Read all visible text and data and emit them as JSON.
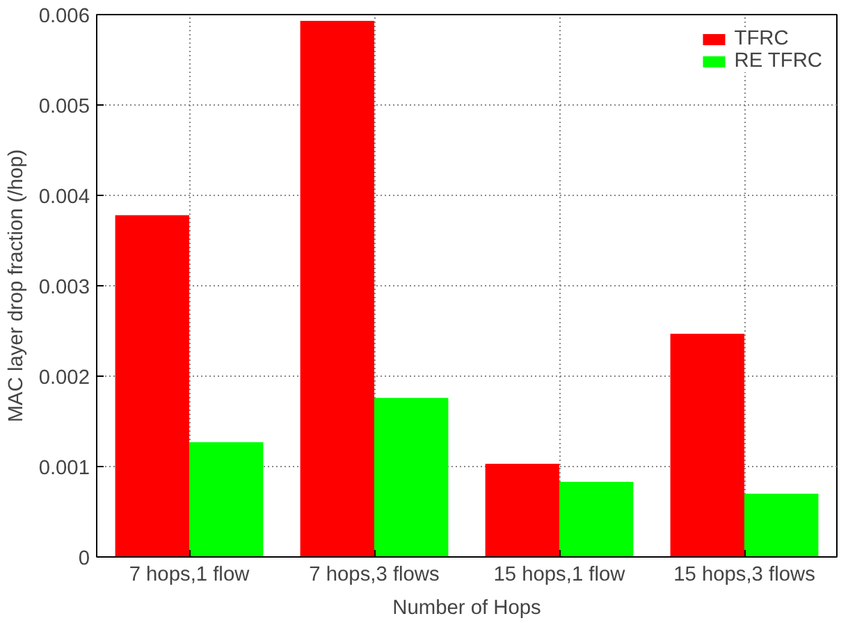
{
  "chart_data": {
    "type": "bar",
    "xlabel": "Number of Hops",
    "ylabel": "MAC layer drop fraction (/hop)",
    "categories": [
      "7 hops,1 flow",
      "7 hops,3 flows",
      "15 hops,1 flow",
      "15 hops,3 flows"
    ],
    "series": [
      {
        "name": "TFRC",
        "color": "#ff0000",
        "values": [
          0.00378,
          0.00593,
          0.00103,
          0.00247
        ]
      },
      {
        "name": "RE TFRC",
        "color": "#00ff00",
        "values": [
          0.00127,
          0.00176,
          0.00083,
          0.0007
        ]
      }
    ],
    "ylim": [
      0,
      0.006
    ],
    "yticks": [
      0,
      0.001,
      0.002,
      0.003,
      0.004,
      0.005,
      0.006
    ],
    "grid": true,
    "legend": "top right"
  }
}
